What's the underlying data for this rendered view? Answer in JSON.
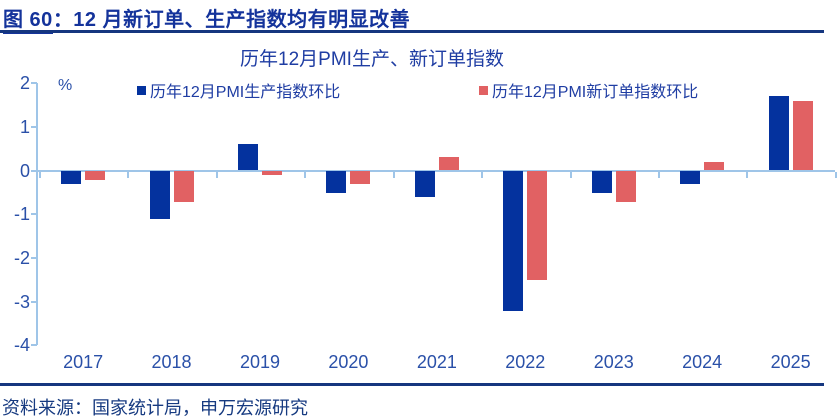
{
  "header": {
    "figure_label": "图 60",
    "title_rest": "：12 月新订单、生产指数均有明显改善"
  },
  "chart_data": {
    "type": "bar",
    "title": "历年12月PMI生产、新订单指数",
    "ylabel": "%",
    "xlabel": "",
    "categories": [
      "2017",
      "2018",
      "2019",
      "2020",
      "2021",
      "2022",
      "2023",
      "2024",
      "2025"
    ],
    "series": [
      {
        "name": "历年12月PMI生产指数环比",
        "color": "#04329e",
        "values": [
          -0.3,
          -1.1,
          0.6,
          -0.5,
          -0.6,
          -3.2,
          -0.5,
          -0.3,
          1.7
        ]
      },
      {
        "name": "历年12月PMI新订单指数环比",
        "color": "#e16163",
        "values": [
          -0.2,
          -0.7,
          -0.1,
          -0.3,
          0.3,
          -2.5,
          -0.7,
          0.2,
          1.6
        ]
      }
    ],
    "ylim": [
      -4,
      2
    ],
    "yticks": [
      2,
      1,
      0,
      -1,
      -2,
      -3,
      -4
    ],
    "grid": false,
    "legend_position": "top"
  },
  "colors": {
    "axis": "#9fc5e8",
    "heading": "#14339b",
    "rule": "#15367f",
    "tick_label": "#2a50a8"
  },
  "footer": {
    "source": "资料来源：国家统计局，申万宏源研究"
  }
}
